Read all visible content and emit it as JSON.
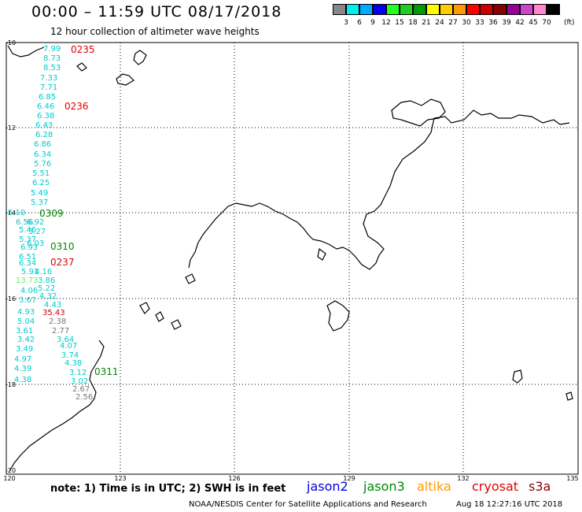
{
  "header": {
    "title": "00:00 – 11:59 UTC 08/17/2018",
    "subtitle": "12 hour collection of altimeter wave heights"
  },
  "colorbar": {
    "colors": [
      "#888888",
      "#00eeee",
      "#00aaff",
      "#0000ee",
      "#22ff22",
      "#22cc22",
      "#009900",
      "#ffff00",
      "#ffcc00",
      "#ff9900",
      "#ff0000",
      "#cc0000",
      "#880000",
      "#990099",
      "#cc44cc",
      "#ff88cc",
      "#000000"
    ],
    "labels": [
      "3",
      "6",
      "9",
      "12",
      "15",
      "18",
      "21",
      "24",
      "27",
      "30",
      "33",
      "36",
      "39",
      "42",
      "45",
      "70"
    ],
    "units": "(ft)"
  },
  "axes": {
    "y_labels": [
      "-10",
      "-12",
      "-14",
      "-16",
      "-18",
      "-20"
    ],
    "x_labels": [
      "120",
      "123",
      "126",
      "129",
      "132",
      "135"
    ]
  },
  "passes": [
    {
      "label": "0235",
      "color": "#e00000"
    },
    {
      "label": "0236",
      "color": "#e00000"
    },
    {
      "label": "0309",
      "color": "#008800"
    },
    {
      "label": "0310",
      "color": "#008800"
    },
    {
      "label": "0237",
      "color": "#e00000"
    },
    {
      "label": "0311",
      "color": "#008800"
    }
  ],
  "wave_heights": [
    {
      "v": "7.99",
      "c": "#00cccc"
    },
    {
      "v": "8.73",
      "c": "#00cccc"
    },
    {
      "v": "8.53",
      "c": "#00cccc"
    },
    {
      "v": "7.33",
      "c": "#00cccc"
    },
    {
      "v": "7.71",
      "c": "#00cccc"
    },
    {
      "v": "6.85",
      "c": "#00cccc"
    },
    {
      "v": "6.46",
      "c": "#00cccc"
    },
    {
      "v": "6.38",
      "c": "#00cccc"
    },
    {
      "v": "6.43",
      "c": "#00cccc"
    },
    {
      "v": "6.28",
      "c": "#00cccc"
    },
    {
      "v": "6.86",
      "c": "#00cccc"
    },
    {
      "v": "6.34",
      "c": "#00cccc"
    },
    {
      "v": "5.76",
      "c": "#00cccc"
    },
    {
      "v": "5.51",
      "c": "#00cccc"
    },
    {
      "v": "6.25",
      "c": "#00cccc"
    },
    {
      "v": "5.49",
      "c": "#00cccc"
    },
    {
      "v": "5.37",
      "c": "#00cccc"
    },
    {
      "v": "6.10",
      "c": "#00cccc"
    },
    {
      "v": "6.56",
      "c": "#00cccc"
    },
    {
      "v": "6.92",
      "c": "#00cccc"
    },
    {
      "v": "5.46",
      "c": "#00cccc"
    },
    {
      "v": "5.27",
      "c": "#00cccc"
    },
    {
      "v": "5.37",
      "c": "#00cccc"
    },
    {
      "v": "6.03",
      "c": "#00cccc"
    },
    {
      "v": "6.93",
      "c": "#00cccc"
    },
    {
      "v": "6.51",
      "c": "#00cccc"
    },
    {
      "v": "6.34",
      "c": "#00cccc"
    },
    {
      "v": "5.91",
      "c": "#00cccc"
    },
    {
      "v": "4.16",
      "c": "#00cccc"
    },
    {
      "v": "13.73",
      "c": "#66ee66"
    },
    {
      "v": "3.86",
      "c": "#00cccc"
    },
    {
      "v": "4.06",
      "c": "#00cccc"
    },
    {
      "v": "5.22",
      "c": "#00cccc"
    },
    {
      "v": "3.67",
      "c": "#00cccc"
    },
    {
      "v": "4.32",
      "c": "#00cccc"
    },
    {
      "v": "4.43",
      "c": "#00cccc"
    },
    {
      "v": "4.93",
      "c": "#00cccc"
    },
    {
      "v": "35.43",
      "c": "#cc0000"
    },
    {
      "v": "5.04",
      "c": "#00cccc"
    },
    {
      "v": "2.38",
      "c": "#777777"
    },
    {
      "v": "3.61",
      "c": "#00cccc"
    },
    {
      "v": "2.77",
      "c": "#777777"
    },
    {
      "v": "3.42",
      "c": "#00cccc"
    },
    {
      "v": "3.64",
      "c": "#00cccc"
    },
    {
      "v": "3.49",
      "c": "#00cccc"
    },
    {
      "v": "4.07",
      "c": "#00cccc"
    },
    {
      "v": "4.97",
      "c": "#00cccc"
    },
    {
      "v": "3.74",
      "c": "#00cccc"
    },
    {
      "v": "4.39",
      "c": "#00cccc"
    },
    {
      "v": "4.38",
      "c": "#00cccc"
    },
    {
      "v": "3.12",
      "c": "#00cccc"
    },
    {
      "v": "4.38",
      "c": "#00cccc"
    },
    {
      "v": "3.02",
      "c": "#00cccc"
    },
    {
      "v": "2.67",
      "c": "#777777"
    },
    {
      "v": "2.56",
      "c": "#777777"
    }
  ],
  "footer": {
    "note": "note: 1) Time is in UTC; 2) SWH is in feet",
    "legend": [
      {
        "name": "jason2",
        "color": "#0000dd"
      },
      {
        "name": "jason3",
        "color": "#008800"
      },
      {
        "name": "altika",
        "color": "#ff9900"
      },
      {
        "name": "cryosat",
        "color": "#dd0000"
      },
      {
        "name": "s3a",
        "color": "#880000"
      }
    ],
    "credit": "NOAA/NESDIS Center for Satellite Applications and Research",
    "timestamp": "Aug 18 12:27:16 UTC 2018"
  }
}
